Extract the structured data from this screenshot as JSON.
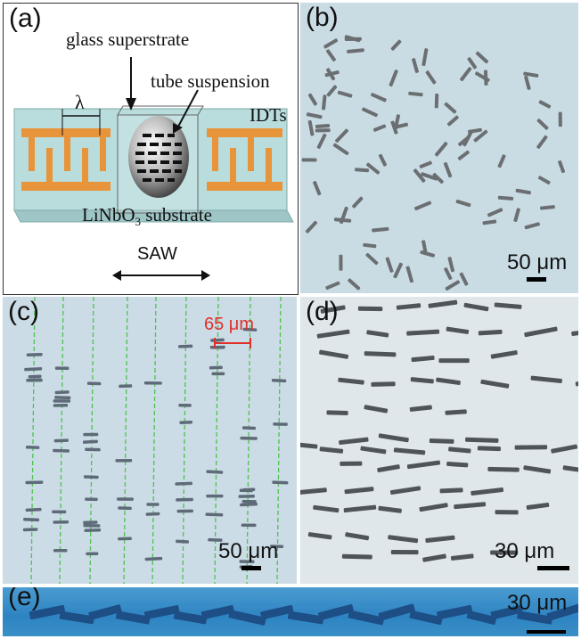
{
  "panel_a": {
    "label": "(a)",
    "glass_superstrate": "glass superstrate",
    "tube_suspension": "tube suspension",
    "lambda": "λ",
    "idts": "IDTs",
    "substrate_main": "LiNbO",
    "substrate_sub": "3",
    "substrate_tail": " substrate",
    "saw": "SAW"
  },
  "panel_b": {
    "label": "(b)",
    "scale": "50 μm"
  },
  "panel_c": {
    "label": "(c)",
    "spacing": "65 μm",
    "scale": "50 μm"
  },
  "panel_d": {
    "label": "(d)",
    "scale": "30 μm"
  },
  "panel_e": {
    "label": "(e)",
    "scale": "30 μm"
  },
  "colors": {
    "micro_background": "#c9dbe3",
    "electrode": "#e8943a",
    "substrate": "#b9dcdc",
    "guide_line": "#4fc24f",
    "annotation_red": "#e0302a"
  }
}
